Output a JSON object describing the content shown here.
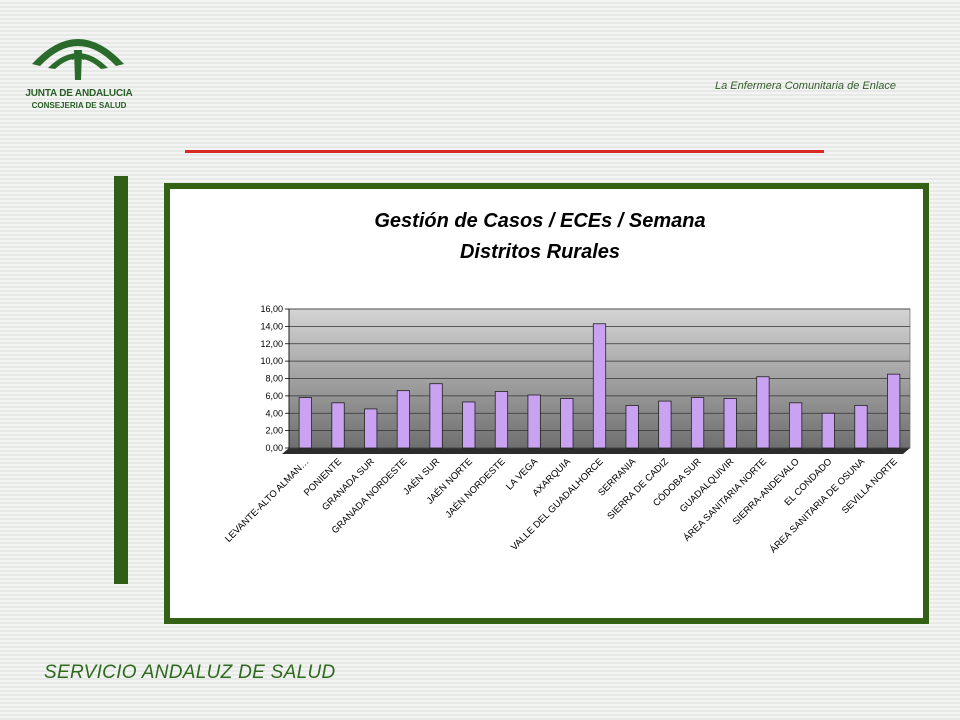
{
  "header": {
    "org_line1": "JUNTA DE ANDALUCIA",
    "org_line2": "CONSEJERIA DE SALUD",
    "subtitle": "La Enfermera Comunitaria de Enlace"
  },
  "footer": {
    "text": "SERVICIO ANDALUZ DE SALUD"
  },
  "colors": {
    "accent_red": "#d72a22",
    "frame_green": "#346214",
    "bar_fill": "#c9a2f2",
    "bar_stroke": "#222222"
  },
  "chart_data": {
    "type": "bar",
    "title": "Gestión de Casos / ECEs / Semana",
    "subtitle": "Distritos Rurales",
    "xlabel": "",
    "ylabel": "",
    "ylim": [
      0,
      16
    ],
    "ytick_step": 2,
    "ytick_labels": [
      "0,00",
      "2,00",
      "4,00",
      "6,00",
      "8,00",
      "10,00",
      "12,00",
      "14,00",
      "16,00"
    ],
    "grid": true,
    "legend": "none",
    "categories": [
      "LEVANTE-ALTO ALMAN…",
      "PONIENTE",
      "GRANADA SUR",
      "GRANADA NORDESTE",
      "JAÉN SUR",
      "JAÉN NORTE",
      "JAÉN NORDESTE",
      "LA VEGA",
      "AXARQUIA",
      "VALLE DEL GUADALHORCE",
      "SERRANIA",
      "SIERRA DE CADIZ",
      "CÓDOBA SUR",
      "GUADALQUIVIR",
      "ÁREA SANITARIA NORTE",
      "SIERRA-ANDEVALO",
      "EL CONDADO",
      "ÁREA SANITARIA DE OSUNA",
      "SEVILLA NORTE"
    ],
    "values": [
      5.8,
      5.2,
      4.5,
      6.6,
      7.4,
      5.3,
      6.5,
      6.1,
      5.7,
      14.3,
      4.9,
      5.4,
      5.8,
      5.7,
      8.2,
      5.2,
      4.0,
      4.9,
      8.5
    ]
  }
}
